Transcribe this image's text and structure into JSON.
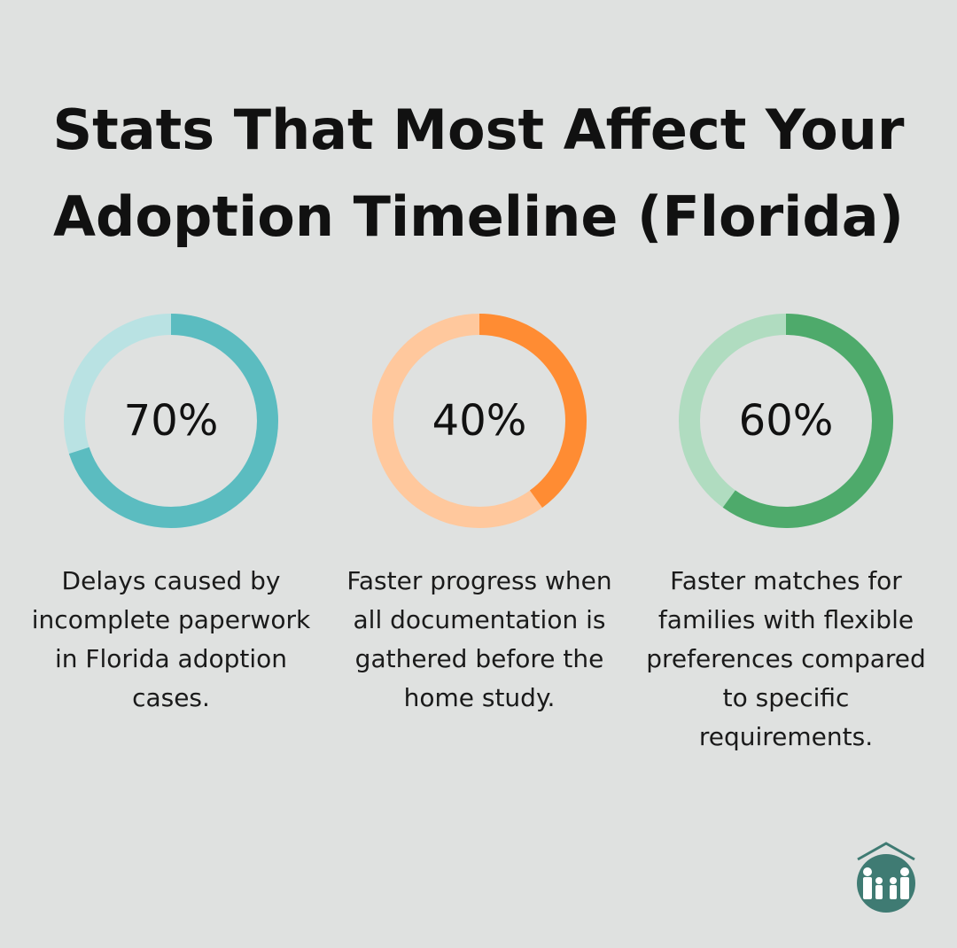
{
  "title": "Stats That Most Affect Your Adoption Timeline (Florida)",
  "chart_data": [
    {
      "type": "pie",
      "style": "donut",
      "value": 70,
      "label": "70%",
      "description": "Delays caused by incomplete paperwork in Florida adoption cases.",
      "colors": {
        "fill": "#5bbcc0",
        "track": "#b9e2e3"
      }
    },
    {
      "type": "pie",
      "style": "donut",
      "value": 40,
      "label": "40%",
      "description": "Faster progress when all documentation is gathered before the home study.",
      "colors": {
        "fill": "#ff8c33",
        "track": "#ffc89d"
      }
    },
    {
      "type": "pie",
      "style": "donut",
      "value": 60,
      "label": "60%",
      "description": "Faster matches for families with flexible preferences compared to specific requirements.",
      "colors": {
        "fill": "#4eaa6b",
        "track": "#b0dcc0"
      }
    }
  ],
  "logo": {
    "icon": "family-house-logo",
    "color": "#3f7b73"
  }
}
